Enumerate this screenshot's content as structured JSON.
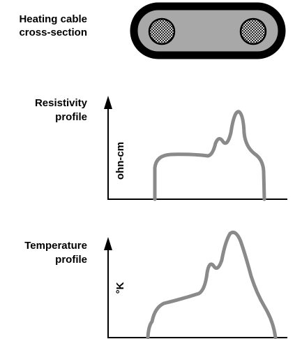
{
  "cable": {
    "label": [
      "Heating cable",
      "cross-section"
    ]
  },
  "resistivity": {
    "label": [
      "Resistivity",
      "profile"
    ],
    "axis_label": "ohn-cm"
  },
  "temperature": {
    "label": [
      "Temperature",
      "profile"
    ],
    "axis_label": "°K"
  }
}
